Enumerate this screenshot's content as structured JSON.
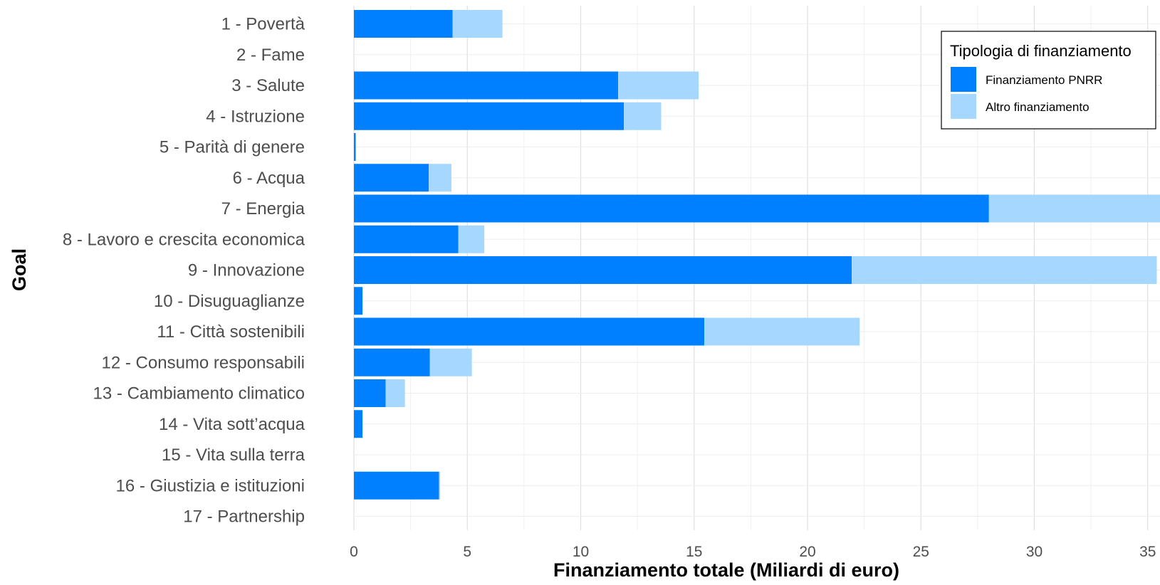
{
  "chart_data": {
    "type": "bar",
    "orientation": "horizontal",
    "stacked": true,
    "xlabel": "Finanziamento totale (Miliardi di euro)",
    "ylabel": "Goal",
    "xlim": [
      0,
      35.5
    ],
    "xticks": [
      0,
      5,
      10,
      15,
      20,
      25,
      30,
      35
    ],
    "grid": true,
    "legend_position": "top-right",
    "legend_title": "Tipologia di finanziamento",
    "categories": [
      "1 - Povertà",
      "2 - Fame",
      "3 - Salute",
      "4 - Istruzione",
      "5 - Parità di genere",
      "6 - Acqua",
      "7 - Energia",
      "8 - Lavoro e crescita economica",
      "9 - Innovazione",
      "10 - Disuguaglianze",
      "11 - Città sostenibili",
      "12 - Consumo responsabili",
      "13 - Cambiamento climatico",
      "14 - Vita sott’acqua",
      "15 - Vita sulla terra",
      "16 - Giustizia e istituzioni",
      "17 - Partnership"
    ],
    "series": [
      {
        "name": "Finanziamento PNRR",
        "color": "#0080ff",
        "values": [
          4.35,
          0,
          11.65,
          11.9,
          0.08,
          3.3,
          28.0,
          4.6,
          21.95,
          0.38,
          15.45,
          3.35,
          1.4,
          0.38,
          0,
          3.75,
          0
        ]
      },
      {
        "name": "Altro finanziamento",
        "color": "#a6d8ff",
        "values": [
          2.2,
          0,
          3.55,
          1.65,
          0,
          1.0,
          7.6,
          1.15,
          13.45,
          0,
          6.85,
          1.85,
          0.85,
          0,
          0,
          0.05,
          0
        ]
      }
    ]
  }
}
